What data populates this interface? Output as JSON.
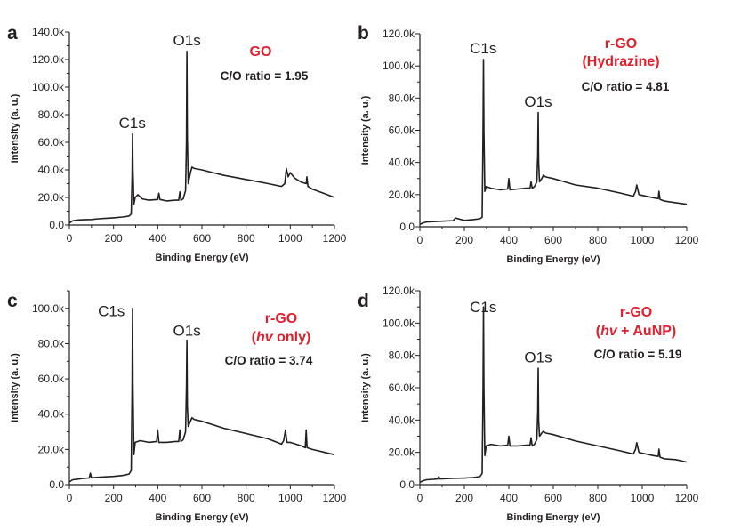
{
  "colors": {
    "axis": "#231f20",
    "trace": "#231f20",
    "accent": "#e0202e"
  },
  "chart_data": [
    {
      "type": "line",
      "panel": "a",
      "title_lines": [
        {
          "parts": [
            {
              "text": "GO",
              "italic": false
            }
          ]
        }
      ],
      "ratio_text": "C/O ratio = 1.95",
      "xlabel": "Binding Energy (eV)",
      "ylabel": "Intensity (a. u.)",
      "xlim": [
        0,
        1200
      ],
      "ylim": [
        0,
        140000
      ],
      "x_ticks": [
        0,
        200,
        400,
        600,
        800,
        1000,
        1200
      ],
      "x_tick_labels": [
        "0",
        "200",
        "400",
        "600",
        "800",
        "1000",
        "1200"
      ],
      "y_ticks": [
        0,
        20000,
        40000,
        60000,
        80000,
        100000,
        120000,
        140000
      ],
      "y_tick_labels": [
        "0.0",
        "20.0k",
        "40.0k",
        "60.0k",
        "80.0k",
        "100.0k",
        "120.0k",
        "140.0k"
      ],
      "peak_labels": [
        {
          "text": "C1s",
          "x": 285,
          "y": 67000
        },
        {
          "text": "O1s",
          "x": 532,
          "y": 127000
        }
      ],
      "x": [
        0,
        15,
        30,
        60,
        100,
        130,
        160,
        200,
        240,
        270,
        280,
        284,
        286,
        288,
        292,
        298,
        310,
        330,
        360,
        400,
        405,
        410,
        440,
        480,
        495,
        500,
        505,
        515,
        526,
        530,
        532,
        534,
        538,
        548,
        555,
        565,
        600,
        650,
        700,
        800,
        900,
        960,
        975,
        982,
        990,
        1000,
        1010,
        1020,
        1050,
        1072,
        1075,
        1080,
        1100,
        1150,
        1200
      ],
      "y": [
        1500,
        3000,
        3500,
        3800,
        4000,
        4500,
        4800,
        5200,
        5800,
        6500,
        8000,
        35000,
        66000,
        40000,
        15000,
        20000,
        22000,
        19000,
        18000,
        18500,
        23000,
        18500,
        17500,
        18000,
        18000,
        24000,
        18000,
        19000,
        25000,
        60000,
        126000,
        65000,
        30000,
        38000,
        42000,
        41000,
        40000,
        38000,
        36000,
        33000,
        30000,
        28000,
        30000,
        41000,
        35000,
        38000,
        36000,
        34000,
        31000,
        30000,
        35000,
        28000,
        26000,
        23000,
        20000
      ]
    },
    {
      "type": "line",
      "panel": "b",
      "title_lines": [
        {
          "parts": [
            {
              "text": "r-GO",
              "italic": false
            }
          ]
        },
        {
          "parts": [
            {
              "text": "(Hydrazine)",
              "italic": false
            }
          ]
        }
      ],
      "ratio_text": "C/O ratio = 4.81",
      "xlabel": "Binding Energy (eV)",
      "ylabel": "Intensity (a. u.)",
      "xlim": [
        0,
        1200
      ],
      "ylim": [
        0,
        120000
      ],
      "x_ticks": [
        0,
        200,
        400,
        600,
        800,
        1000,
        1200
      ],
      "x_tick_labels": [
        "0",
        "200",
        "400",
        "600",
        "800",
        "1000",
        "1200"
      ],
      "y_ticks": [
        0,
        20000,
        40000,
        60000,
        80000,
        100000,
        120000
      ],
      "y_tick_labels": [
        "0.0",
        "20.0k",
        "40.0k",
        "60.0k",
        "80.0k",
        "100.0k",
        "120.0k"
      ],
      "peak_labels": [
        {
          "text": "C1s",
          "x": 285,
          "y": 105000
        },
        {
          "text": "O1s",
          "x": 532,
          "y": 72000
        }
      ],
      "x": [
        0,
        15,
        30,
        60,
        100,
        150,
        160,
        200,
        240,
        270,
        280,
        284,
        286,
        288,
        292,
        298,
        320,
        360,
        395,
        400,
        405,
        440,
        480,
        495,
        500,
        505,
        515,
        526,
        530,
        532,
        534,
        538,
        548,
        555,
        565,
        600,
        650,
        700,
        800,
        900,
        960,
        970,
        975,
        985,
        1000,
        1050,
        1072,
        1075,
        1080,
        1100,
        1150,
        1200
      ],
      "y": [
        1500,
        2500,
        3000,
        3200,
        3500,
        3800,
        5500,
        4000,
        4500,
        5000,
        6000,
        60000,
        104000,
        60000,
        22000,
        25000,
        24000,
        23000,
        23500,
        30000,
        23000,
        23500,
        24000,
        24000,
        28000,
        24000,
        25000,
        28000,
        45000,
        71000,
        40000,
        28000,
        30000,
        32000,
        31000,
        30000,
        28000,
        26000,
        24000,
        21000,
        19000,
        22000,
        26000,
        20000,
        19500,
        18000,
        17500,
        22000,
        17000,
        16000,
        15000,
        14000
      ]
    },
    {
      "type": "line",
      "panel": "c",
      "title_lines": [
        {
          "parts": [
            {
              "text": "r-GO",
              "italic": false
            }
          ]
        },
        {
          "parts": [
            {
              "text": "(",
              "italic": false
            },
            {
              "text": "hv",
              "italic": true
            },
            {
              "text": " only)",
              "italic": false
            }
          ]
        }
      ],
      "ratio_text": "C/O ratio = 3.74",
      "xlabel": "Binding Energy (eV)",
      "ylabel": "Intensity (a. u.)",
      "xlim": [
        0,
        1200
      ],
      "ylim": [
        0,
        110000
      ],
      "x_ticks": [
        0,
        200,
        400,
        600,
        800,
        1000,
        1200
      ],
      "x_tick_labels": [
        "0",
        "200",
        "400",
        "600",
        "800",
        "1000",
        "1200"
      ],
      "y_ticks": [
        0,
        20000,
        40000,
        60000,
        80000,
        100000
      ],
      "y_tick_labels": [
        "0.0",
        "20.0k",
        "40.0k",
        "60.0k",
        "80.0k",
        "100.0k"
      ],
      "peak_labels": [
        {
          "text": "C1s",
          "x": 190,
          "y": 93000
        },
        {
          "text": "O1s",
          "x": 532,
          "y": 82000
        }
      ],
      "x": [
        0,
        15,
        30,
        60,
        90,
        95,
        100,
        130,
        200,
        240,
        270,
        280,
        284,
        286,
        288,
        292,
        298,
        320,
        360,
        395,
        400,
        405,
        440,
        480,
        495,
        500,
        505,
        515,
        526,
        530,
        532,
        534,
        538,
        548,
        555,
        565,
        600,
        650,
        700,
        800,
        900,
        960,
        970,
        978,
        985,
        1000,
        1050,
        1068,
        1072,
        1076,
        1100,
        1150,
        1200
      ],
      "y": [
        1500,
        2800,
        3000,
        3500,
        3800,
        6500,
        3900,
        4200,
        4700,
        5200,
        6000,
        8000,
        55000,
        100000,
        55000,
        17000,
        24000,
        25000,
        24000,
        24500,
        31000,
        24000,
        24000,
        24500,
        24500,
        31000,
        24500,
        25500,
        30000,
        55000,
        82000,
        45000,
        33000,
        36000,
        38000,
        37000,
        36000,
        34000,
        32000,
        29000,
        26000,
        23000,
        25000,
        31000,
        24000,
        24000,
        22000,
        21000,
        31000,
        21000,
        20000,
        18500,
        17000
      ]
    },
    {
      "type": "line",
      "panel": "d",
      "title_lines": [
        {
          "parts": [
            {
              "text": "r-GO",
              "italic": false
            }
          ]
        },
        {
          "parts": [
            {
              "text": "(",
              "italic": false
            },
            {
              "text": "hv",
              "italic": true
            },
            {
              "text": " + AuNP)",
              "italic": false
            }
          ]
        }
      ],
      "ratio_text": "C/O ratio = 5.19",
      "xlabel": "Binding Energy (eV)",
      "ylabel": "Intensity (a. u.)",
      "xlim": [
        0,
        1200
      ],
      "ylim": [
        0,
        120000
      ],
      "x_ticks": [
        0,
        200,
        400,
        600,
        800,
        1000,
        1200
      ],
      "x_tick_labels": [
        "0",
        "200",
        "400",
        "600",
        "800",
        "1000",
        "1200"
      ],
      "y_ticks": [
        0,
        20000,
        40000,
        60000,
        80000,
        100000,
        120000
      ],
      "y_tick_labels": [
        "0.0",
        "20.0k",
        "40.0k",
        "60.0k",
        "80.0k",
        "100.0k",
        "120.0k"
      ],
      "peak_labels": [
        {
          "text": "C1s",
          "x": 285,
          "y": 104000
        },
        {
          "text": "O1s",
          "x": 532,
          "y": 73000
        }
      ],
      "x": [
        0,
        15,
        30,
        60,
        80,
        85,
        90,
        130,
        200,
        240,
        270,
        280,
        284,
        286,
        288,
        292,
        298,
        320,
        360,
        395,
        400,
        405,
        440,
        480,
        495,
        500,
        505,
        515,
        526,
        530,
        532,
        534,
        538,
        548,
        555,
        565,
        600,
        650,
        700,
        800,
        900,
        960,
        970,
        975,
        985,
        1000,
        1050,
        1072,
        1075,
        1080,
        1100,
        1150,
        1200
      ],
      "y": [
        1500,
        2500,
        3000,
        3300,
        3500,
        5000,
        3500,
        3800,
        4100,
        4400,
        5000,
        7000,
        60000,
        110000,
        60000,
        18000,
        24000,
        25000,
        24000,
        24500,
        30000,
        24000,
        24000,
        24500,
        24500,
        29000,
        24000,
        25000,
        28000,
        45000,
        72000,
        40000,
        30000,
        32000,
        33000,
        32000,
        31000,
        29000,
        27000,
        24000,
        21000,
        19000,
        22000,
        26000,
        20000,
        19500,
        18000,
        17500,
        22000,
        17000,
        16000,
        15500,
        14000
      ]
    }
  ]
}
